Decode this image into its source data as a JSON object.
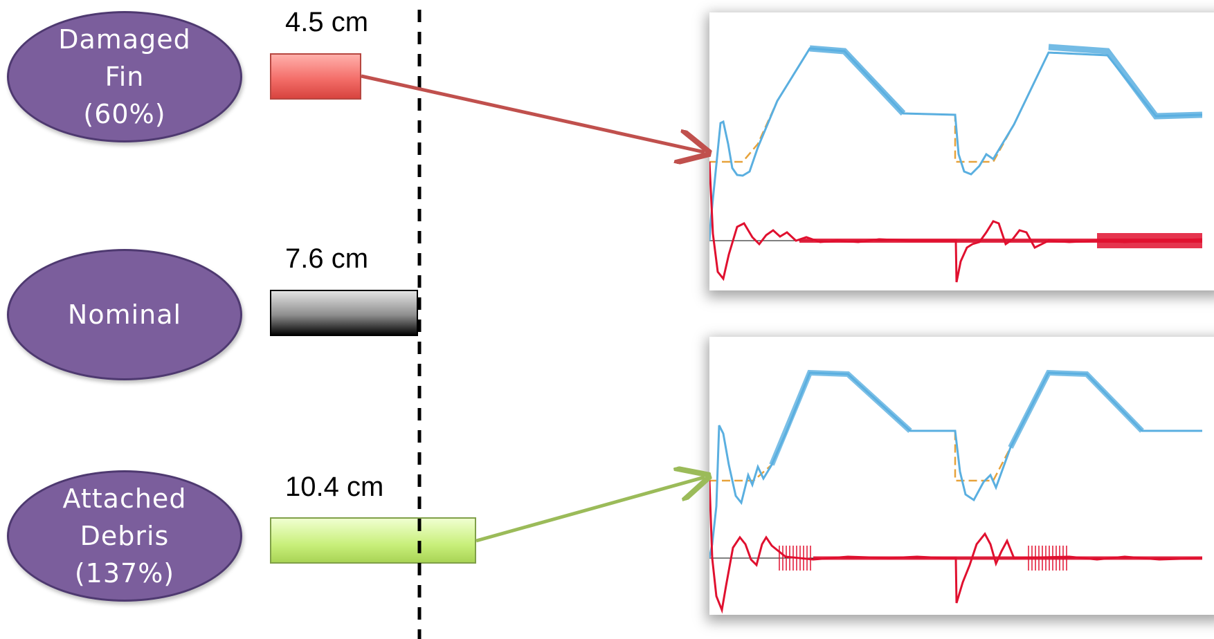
{
  "conditions": [
    {
      "id": "fin",
      "lines": [
        "Damaged",
        "Fin",
        "(60%)"
      ],
      "length": "4.5 cm"
    },
    {
      "id": "nom",
      "lines": [
        "Nominal"
      ],
      "length": "7.6 cm"
    },
    {
      "id": "debris",
      "lines": [
        "Attached",
        "Debris",
        "(137%)"
      ],
      "length": "10.4 cm"
    }
  ],
  "colors": {
    "ellipse": "#7b5e9c",
    "fin_bar": "#f46f6a",
    "nominal_bar": "#000000",
    "debris_bar": "#c8ef7a",
    "arrow_fin": "#c0504d",
    "arrow_debris": "#9bbb59",
    "trace_actual": "#5aafe0",
    "trace_reference": "#e7a23a",
    "trace_error": "#e0102f"
  }
}
